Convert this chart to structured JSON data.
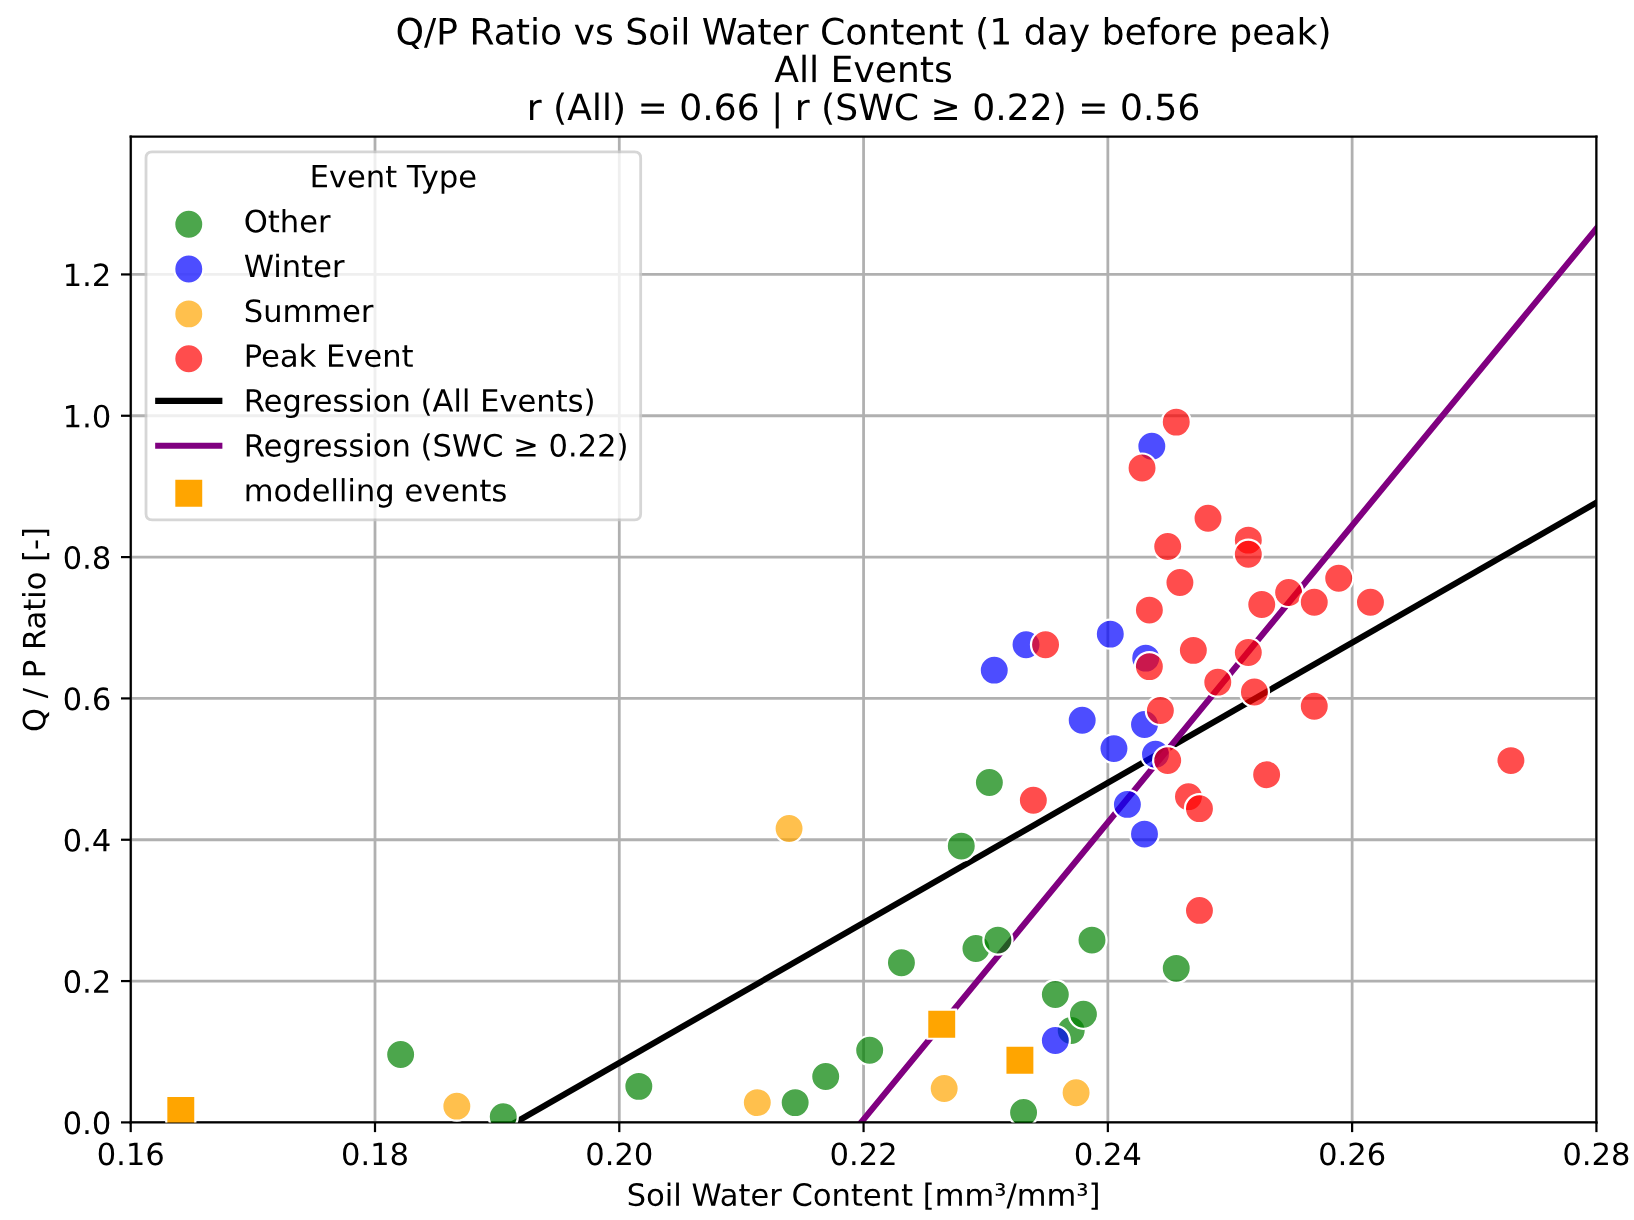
{
  "chart_data": {
    "type": "scatter",
    "title": "Q/P Ratio vs Soil Water Content (1 day before peak)",
    "subtitle": "All Events\nr (All) = 0.66 | r (SWC ≥ 0.22) = 0.56",
    "xlabel": "Soil Water Content [mm³/mm³]",
    "ylabel": "Q / P Ratio [-]",
    "legend_title": "Event Type",
    "xlim": [
      0.16,
      0.28
    ],
    "xticks": [
      0.16,
      0.18,
      {
        "value": 0.2,
        "label": "0.20"
      },
      0.22,
      0.24,
      0.26,
      0.28
    ],
    "ylim": [
      0,
      1.395
    ],
    "yticks": [
      {
        "value": 0,
        "label": "0.0"
      },
      0.2,
      0.4,
      0.6,
      0.8,
      {
        "value": 1,
        "label": "1.0"
      },
      1.2
    ],
    "grid": true,
    "legend": "top left",
    "series": [
      {
        "name": "Other",
        "marker": "circle",
        "color": "#4ca64c",
        "x": [
          0.1821,
          0.1905,
          0.2016,
          0.2144,
          0.2169,
          0.2205,
          0.2231,
          0.228,
          0.2292,
          0.2303,
          0.231,
          0.2331,
          0.2357,
          0.237,
          0.238,
          0.2387,
          0.2456
        ],
        "values": [
          0.096,
          0.008,
          0.051,
          0.028,
          0.065,
          0.102,
          0.226,
          0.391,
          0.246,
          0.481,
          0.258,
          0.014,
          0.181,
          0.13,
          0.153,
          0.258,
          0.218
        ]
      },
      {
        "name": "Winter",
        "marker": "circle",
        "color": "#4d4dff",
        "x": [
          0.2307,
          0.2333,
          0.2357,
          0.2379,
          0.2402,
          0.2405,
          0.2416,
          0.243,
          0.2431,
          0.243,
          0.2436,
          0.2439
        ],
        "values": [
          0.64,
          0.676,
          0.116,
          0.569,
          0.691,
          0.529,
          0.45,
          0.563,
          0.657,
          0.408,
          0.957,
          0.521
        ]
      },
      {
        "name": "Summer",
        "marker": "circle",
        "color": "#ffc04d",
        "x": [
          0.1867,
          0.2113,
          0.2139,
          0.2266,
          0.2374
        ],
        "values": [
          0.023,
          0.028,
          0.416,
          0.048,
          0.042
        ]
      },
      {
        "name": "Peak Event",
        "marker": "circle",
        "color": "#ff4d4d",
        "x": [
          0.2456,
          0.2428,
          0.2482,
          0.2449,
          0.2515,
          0.2515,
          0.2459,
          0.2589,
          0.2548,
          0.2569,
          0.2615,
          0.2526,
          0.2434,
          0.2349,
          0.247,
          0.2515,
          0.2434,
          0.249,
          0.252,
          0.2443,
          0.2569,
          0.2449,
          0.253,
          0.2339,
          0.2466,
          0.2475,
          0.2475,
          0.273
        ],
        "values": [
          0.991,
          0.926,
          0.855,
          0.815,
          0.824,
          0.804,
          0.764,
          0.77,
          0.75,
          0.736,
          0.736,
          0.733,
          0.725,
          0.676,
          0.668,
          0.665,
          0.645,
          0.623,
          0.609,
          0.583,
          0.589,
          0.512,
          0.492,
          0.456,
          0.461,
          0.444,
          0.3,
          0.512
        ]
      },
      {
        "name": "Regression (All Events)",
        "type": "line",
        "color": "#000000",
        "x": [
          0.1915,
          0.28
        ],
        "values": [
          0,
          0.877
        ]
      },
      {
        "name": "Regression (SWC ≥ 0.22)",
        "type": "line",
        "color": "#800080",
        "x": [
          0.2198,
          0.28
        ],
        "values": [
          0,
          1.265
        ]
      },
      {
        "name": "modelling events",
        "color": "#ffa500",
        "marker": "square",
        "x": [
          0.1641,
          0.2264,
          0.2328
        ],
        "values": [
          0.017,
          0.139,
          0.088
        ]
      }
    ]
  }
}
